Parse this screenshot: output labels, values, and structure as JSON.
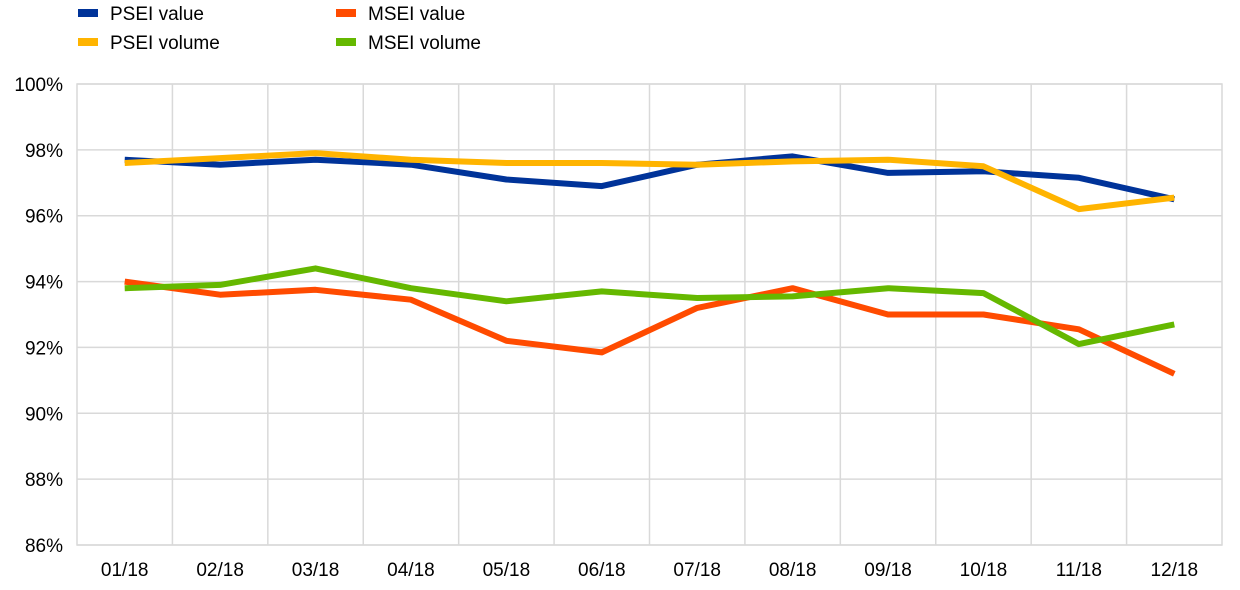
{
  "chart_data": {
    "type": "line",
    "title": "",
    "xlabel": "",
    "ylabel": "",
    "categories": [
      "01/18",
      "02/18",
      "03/18",
      "04/18",
      "05/18",
      "06/18",
      "07/18",
      "08/18",
      "09/18",
      "10/18",
      "11/18",
      "12/18"
    ],
    "ylim": [
      86,
      100
    ],
    "yticks": [
      86,
      88,
      90,
      92,
      94,
      96,
      98,
      100
    ],
    "ytick_labels": [
      "86%",
      "88%",
      "90%",
      "92%",
      "94%",
      "96%",
      "98%",
      "100%"
    ],
    "grid": true,
    "legend_position": "top-left",
    "series": [
      {
        "name": "PSEI value",
        "color": "#003399",
        "values": [
          97.7,
          97.55,
          97.7,
          97.55,
          97.1,
          96.9,
          97.55,
          97.8,
          97.3,
          97.35,
          97.15,
          96.5
        ]
      },
      {
        "name": "MSEI value",
        "color": "#ff4b00",
        "values": [
          94.0,
          93.6,
          93.75,
          93.45,
          92.2,
          91.85,
          93.2,
          93.8,
          93.0,
          93.0,
          92.55,
          91.2
        ]
      },
      {
        "name": "PSEI volume",
        "color": "#ffb400",
        "values": [
          97.6,
          97.75,
          97.9,
          97.7,
          97.6,
          97.6,
          97.55,
          97.65,
          97.7,
          97.5,
          96.2,
          96.55
        ]
      },
      {
        "name": "MSEI volume",
        "color": "#65b800",
        "values": [
          93.8,
          93.9,
          94.4,
          93.8,
          93.4,
          93.7,
          93.5,
          93.55,
          93.8,
          93.65,
          92.1,
          92.7
        ]
      }
    ]
  }
}
